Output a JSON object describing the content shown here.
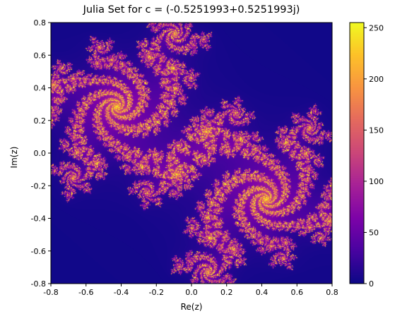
{
  "chart_data": {
    "type": "heatmap",
    "title": "Julia Set for c = (-0.5251993+0.5251993j)",
    "xlabel": "Re(z)",
    "ylabel": "Im(z)",
    "xlim": [
      -0.8,
      0.8
    ],
    "ylim": [
      -0.8,
      0.8
    ],
    "x_ticks": [
      "-0.8",
      "-0.6",
      "-0.4",
      "-0.2",
      "0.0",
      "0.2",
      "0.4",
      "0.6",
      "0.8"
    ],
    "y_ticks": [
      "-0.8",
      "-0.6",
      "-0.4",
      "-0.2",
      "0.0",
      "0.2",
      "0.4",
      "0.6",
      "0.8"
    ],
    "c_real": -0.5251993,
    "c_imag": 0.5251993,
    "max_iter": 255,
    "colormap": "plasma",
    "grid": false,
    "colorbar": {
      "min": 0,
      "max": 255,
      "ticks": [
        "0",
        "50",
        "100",
        "150",
        "200",
        "250"
      ]
    }
  }
}
